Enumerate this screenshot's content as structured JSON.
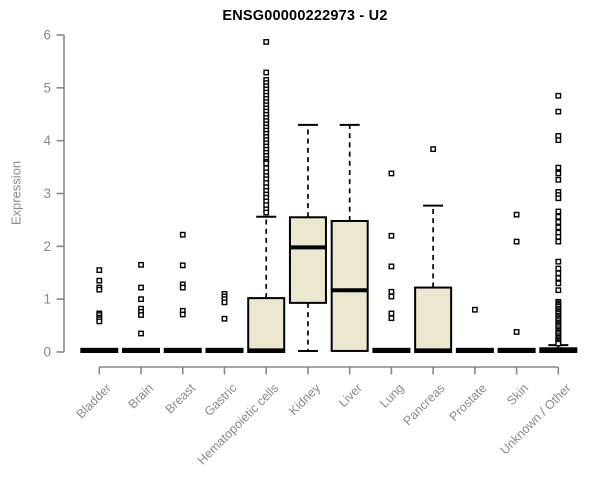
{
  "title": "ENSG00000222973 - U2",
  "chart_data": {
    "type": "boxplot",
    "title": "ENSG00000222973 - U2",
    "xlabel": "",
    "ylabel": "Expression",
    "ylim": [
      0,
      6
    ],
    "yticks": [
      0,
      1,
      2,
      3,
      4,
      5,
      6
    ],
    "grid": false,
    "legend": false,
    "box_fill": "#ece7cf",
    "box_stroke": "#000000",
    "axis_color": "#898989",
    "tick_label_color": "#8a8a8a",
    "categories": [
      "Bladder",
      "Brain",
      "Breast",
      "Gastric",
      "Hematopoietic cells",
      "Kidney",
      "Liver",
      "Lung",
      "Pancreas",
      "Prostate",
      "Skin",
      "Unknown / Other"
    ],
    "series": [
      {
        "name": "Bladder",
        "q1": 0,
        "median": 0.02,
        "q3": 0.06,
        "whisker_low": 0,
        "whisker_high": 0.06,
        "outliers": [
          1.55,
          1.35,
          1.22,
          1.18,
          0.73,
          0.7,
          0.65,
          0.62,
          0.58
        ]
      },
      {
        "name": "Brain",
        "q1": 0,
        "median": 0.02,
        "q3": 0.06,
        "whisker_low": 0,
        "whisker_high": 0.06,
        "outliers": [
          1.65,
          1.22,
          1.0,
          0.82,
          0.76,
          0.7,
          0.35
        ]
      },
      {
        "name": "Breast",
        "q1": 0,
        "median": 0.02,
        "q3": 0.06,
        "whisker_low": 0,
        "whisker_high": 0.06,
        "outliers": [
          2.22,
          1.64,
          1.28,
          1.22,
          0.78,
          0.71
        ]
      },
      {
        "name": "Gastric",
        "q1": 0,
        "median": 0.02,
        "q3": 0.06,
        "whisker_low": 0,
        "whisker_high": 0.06,
        "outliers": [
          1.1,
          1.05,
          1.0,
          0.94,
          0.63
        ]
      },
      {
        "name": "Hematopoietic cells",
        "q1": 0,
        "median": 0.03,
        "q3": 1.02,
        "whisker_low": 0,
        "whisker_high": 2.56,
        "outliers": [
          5.87,
          5.29,
          5.15,
          5.09,
          5.03,
          4.97,
          4.91,
          4.85,
          4.79,
          4.73,
          4.67,
          4.61,
          4.55,
          4.49,
          4.43,
          4.37,
          4.31,
          4.25,
          4.19,
          4.13,
          4.07,
          4.01,
          3.95,
          3.89,
          3.83,
          3.77,
          3.71,
          3.65,
          3.6,
          3.57,
          3.48,
          3.4,
          3.33,
          3.27,
          3.2,
          3.12,
          3.05,
          2.98,
          2.92,
          2.85,
          2.78,
          2.7,
          2.64
        ]
      },
      {
        "name": "Kidney",
        "q1": 0.93,
        "median": 1.98,
        "q3": 2.55,
        "whisker_low": 0.02,
        "whisker_high": 4.3,
        "outliers": []
      },
      {
        "name": "Liver",
        "q1": 0.02,
        "median": 1.17,
        "q3": 2.48,
        "whisker_low": 0.02,
        "whisker_high": 4.3,
        "outliers": []
      },
      {
        "name": "Lung",
        "q1": 0,
        "median": 0.02,
        "q3": 0.06,
        "whisker_low": 0,
        "whisker_high": 0.06,
        "outliers": [
          3.38,
          2.2,
          1.62,
          1.14,
          1.05,
          0.73,
          0.64
        ]
      },
      {
        "name": "Pancreas",
        "q1": 0,
        "median": 0.03,
        "q3": 1.22,
        "whisker_low": 0,
        "whisker_high": 2.77,
        "outliers": [
          3.84
        ]
      },
      {
        "name": "Prostate",
        "q1": 0,
        "median": 0.02,
        "q3": 0.06,
        "whisker_low": 0,
        "whisker_high": 0.06,
        "outliers": [
          0.8
        ]
      },
      {
        "name": "Skin",
        "q1": 0,
        "median": 0.02,
        "q3": 0.06,
        "whisker_low": 0,
        "whisker_high": 0.06,
        "outliers": [
          2.6,
          2.09,
          0.38
        ]
      },
      {
        "name": "Unknown / Other",
        "q1": 0,
        "median": 0.02,
        "q3": 0.07,
        "whisker_low": 0,
        "whisker_high": 0.13,
        "outliers": [
          4.85,
          4.55,
          4.09,
          4.01,
          3.49,
          3.38,
          3.26,
          3.03,
          2.97,
          2.91,
          2.66,
          2.56,
          2.46,
          2.36,
          2.26,
          2.18,
          2.09,
          1.71,
          1.58,
          1.49,
          1.4,
          1.3,
          1.17,
          0.95,
          0.92,
          0.89,
          0.86,
          0.82,
          0.79,
          0.76,
          0.73,
          0.69,
          0.66,
          0.63,
          0.6,
          0.56,
          0.53,
          0.5,
          0.47,
          0.43,
          0.4,
          0.37,
          0.34,
          0.3,
          0.27,
          0.24,
          0.21,
          0.18,
          0.16
        ]
      }
    ]
  }
}
